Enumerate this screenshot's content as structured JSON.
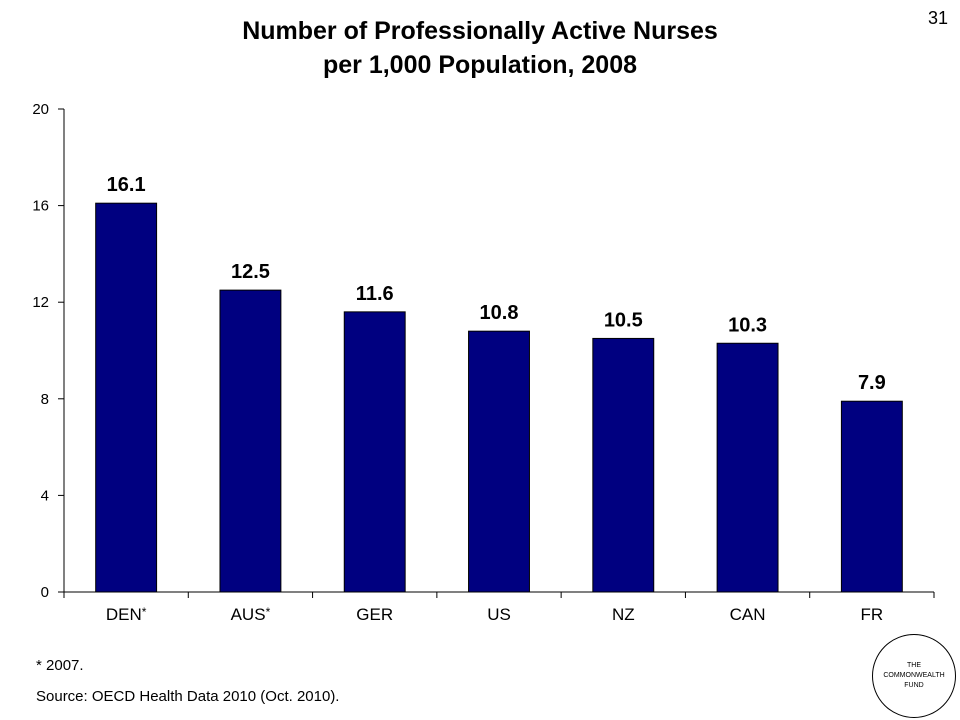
{
  "slide_number": "31",
  "chart_data": {
    "type": "bar",
    "title_line1": "Number of Professionally Active Nurses",
    "title_line2": "per 1,000 Population, 2008",
    "categories": [
      "DEN",
      "AUS",
      "GER",
      "US",
      "NZ",
      "CAN",
      "FR"
    ],
    "category_marks": [
      "*",
      "*",
      "",
      "",
      "",
      "",
      ""
    ],
    "values": [
      16.1,
      12.5,
      11.6,
      10.8,
      10.5,
      10.3,
      7.9
    ],
    "value_labels": [
      "16.1",
      "12.5",
      "11.6",
      "10.8",
      "10.5",
      "10.3",
      "7.9"
    ],
    "y_ticks": [
      "0",
      "4",
      "8",
      "12",
      "16",
      "20"
    ],
    "ylim": [
      0,
      20
    ],
    "bar_color": "#000080",
    "grid": false,
    "xlabel": "",
    "ylabel": ""
  },
  "footnote": "* 2007.",
  "source": "Source: OECD Health Data 2010 (Oct. 2010).",
  "logo": {
    "line1": "THE",
    "line2": "COMMONWEALTH",
    "line3": "FUND"
  }
}
